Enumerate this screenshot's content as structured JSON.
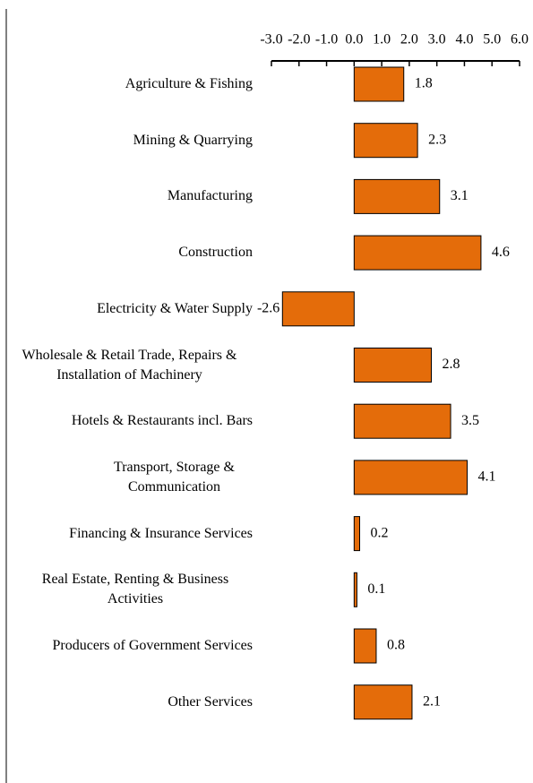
{
  "chart_data": {
    "type": "bar",
    "orientation": "horizontal",
    "categories": [
      "Agriculture & Fishing",
      "Mining & Quarrying",
      "Manufacturing",
      "Construction",
      "Electricity & Water Supply",
      "Wholesale & Retail Trade, Repairs & Installation of Machinery",
      "Hotels & Restaurants incl. Bars",
      "Transport, Storage & Communication",
      "Financing & Insurance Services",
      "Real Estate, Renting & Business Activities",
      "Producers of Government Services",
      "Other Services"
    ],
    "values": [
      1.8,
      2.3,
      3.1,
      4.6,
      -2.6,
      2.8,
      3.5,
      4.1,
      0.2,
      0.1,
      0.8,
      2.1
    ],
    "color": "#e46c0a",
    "xlim": [
      -3,
      6
    ],
    "xticks": [
      {
        "value": -3,
        "label": "-3.0"
      },
      {
        "value": -2,
        "label": "-2.0"
      },
      {
        "value": -1,
        "label": "-1.0"
      },
      {
        "value": 0,
        "label": "0.0"
      },
      {
        "value": 1,
        "label": "1.0"
      },
      {
        "value": 2,
        "label": "2.0"
      },
      {
        "value": 3,
        "label": "3.0"
      },
      {
        "value": 4,
        "label": "4.0"
      },
      {
        "value": 5,
        "label": "5.0"
      },
      {
        "value": 6,
        "label": "6.0"
      }
    ],
    "grid": false
  }
}
